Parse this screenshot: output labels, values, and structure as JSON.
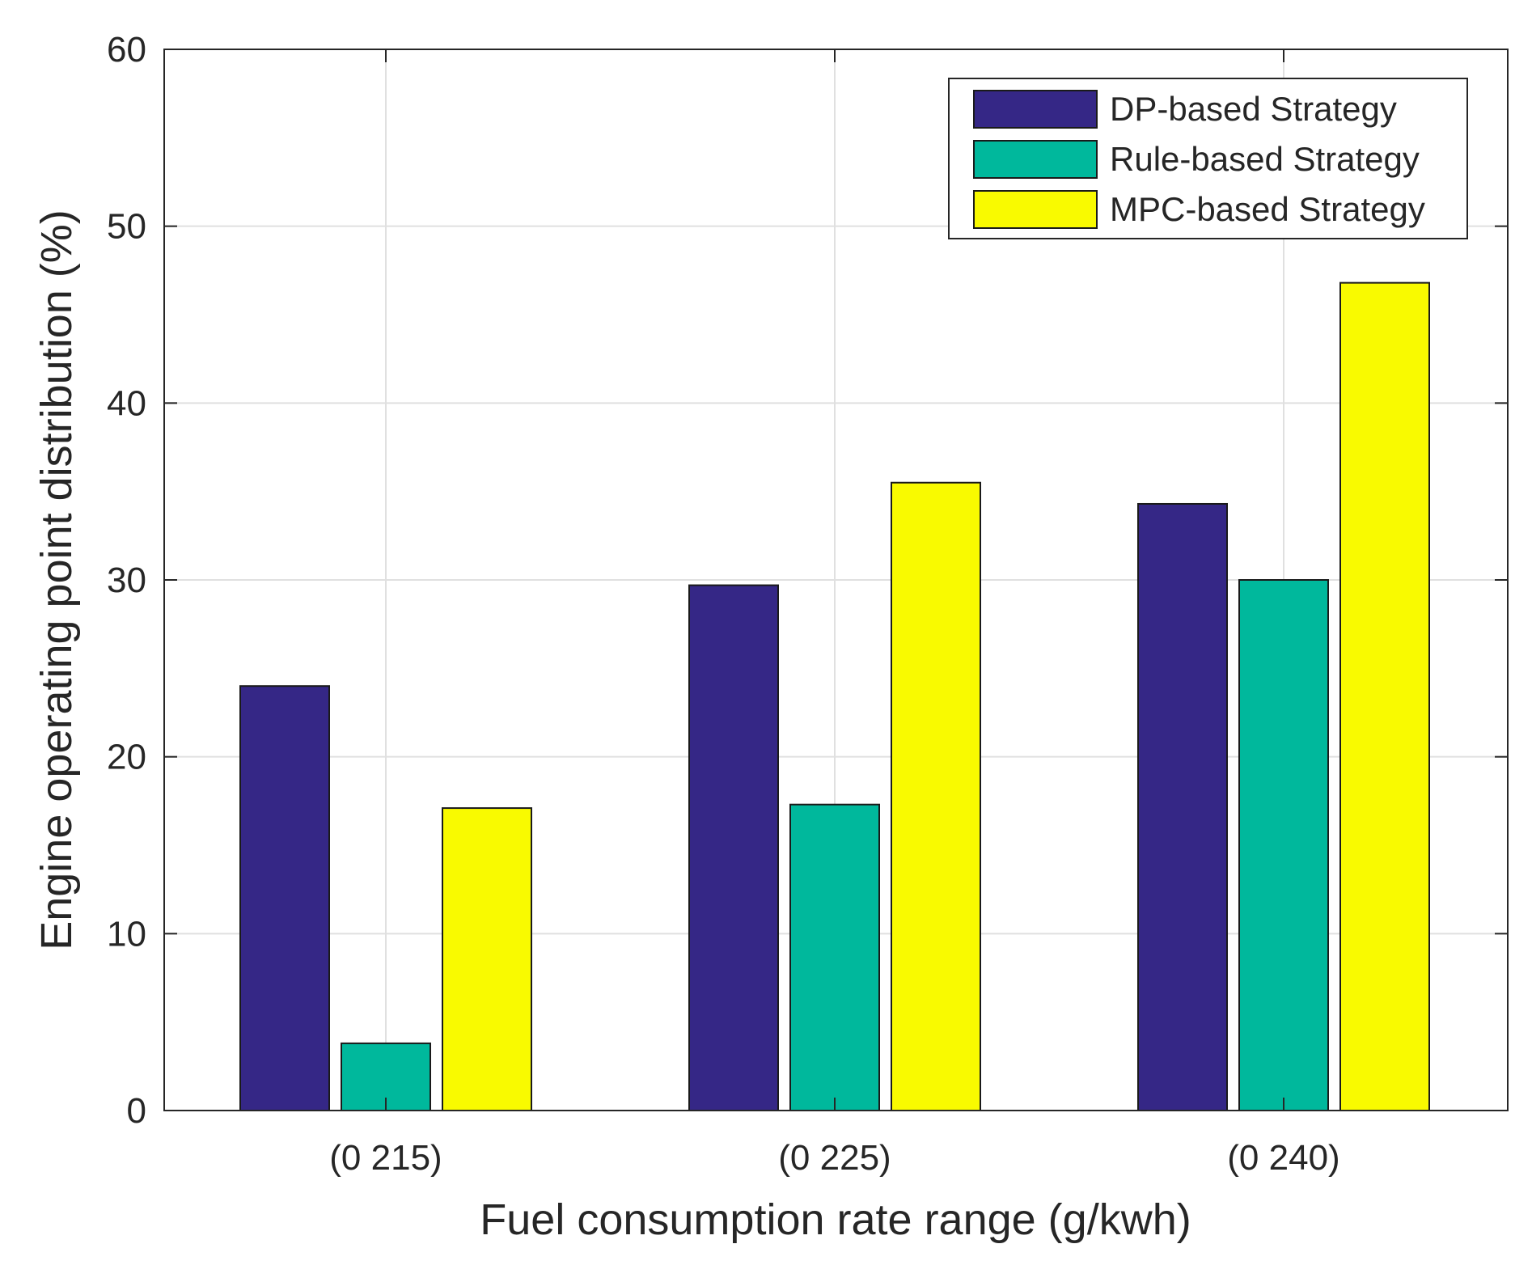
{
  "chart_data": {
    "type": "bar",
    "title": "",
    "xlabel": "Fuel consumption rate range (g/kwh)",
    "ylabel": "Engine operating point distribution (%)",
    "categories": [
      "(0 215)",
      "(0 225)",
      "(0 240)"
    ],
    "ylim": [
      0,
      60
    ],
    "yticks": [
      0,
      10,
      20,
      30,
      40,
      50,
      60
    ],
    "grid": true,
    "legend_position": "top-right",
    "series": [
      {
        "name": "DP-based Strategy",
        "color": "#352786",
        "values": [
          24.0,
          29.7,
          34.3
        ]
      },
      {
        "name": "Rule-based Strategy",
        "color": "#00b89c",
        "values": [
          3.8,
          17.3,
          30.0
        ]
      },
      {
        "name": "MPC-based Strategy",
        "color": "#f9fa00",
        "values": [
          17.1,
          35.5,
          46.8
        ]
      }
    ]
  }
}
